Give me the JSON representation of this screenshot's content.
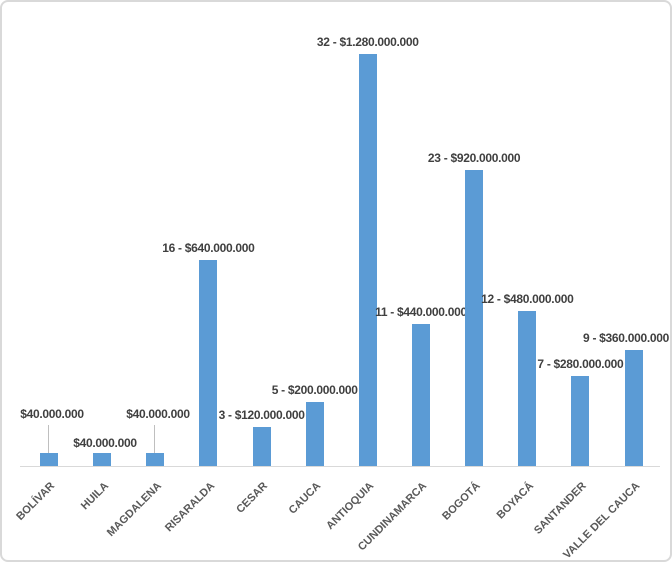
{
  "chart_data": {
    "type": "bar",
    "title": "",
    "xlabel": "",
    "ylabel": "",
    "categories": [
      "BOLÍVAR",
      "HUILA",
      "MAGDALENA",
      "RISARALDA",
      "CESAR",
      "CAUCA",
      "ANTIOQUIA",
      "CUNDINAMARCA",
      "BOGOTÁ",
      "BOYACÁ",
      "SANTANDER",
      "VALLE DEL CAUCA"
    ],
    "values": [
      40000000,
      40000000,
      40000000,
      640000000,
      120000000,
      200000000,
      1280000000,
      440000000,
      920000000,
      480000000,
      280000000,
      360000000
    ],
    "counts": [
      null,
      null,
      null,
      16,
      3,
      5,
      32,
      11,
      23,
      12,
      7,
      9
    ],
    "labels": [
      "$40.000.000",
      "$40.000.000",
      "$40.000.000",
      "16 - $640.000.000",
      "3 - $120.000.000",
      "5 - $200.000.000",
      "32 - $1.280.000.000",
      "11 - $440.000.000",
      "23 - $920.000.000",
      "12 - $480.000.000",
      "7 - $280.000.000",
      "9 - $360.000.000"
    ],
    "ylim": [
      0,
      1280000000
    ],
    "grid": false,
    "legend": false,
    "y_axis_visible": false,
    "bar_color": "#5b9bd5",
    "value_label_color": "#404040",
    "category_label_color": "#595959",
    "axis_line_color": "#d9d9d9",
    "leader_line_color": "#bfbfbf"
  }
}
